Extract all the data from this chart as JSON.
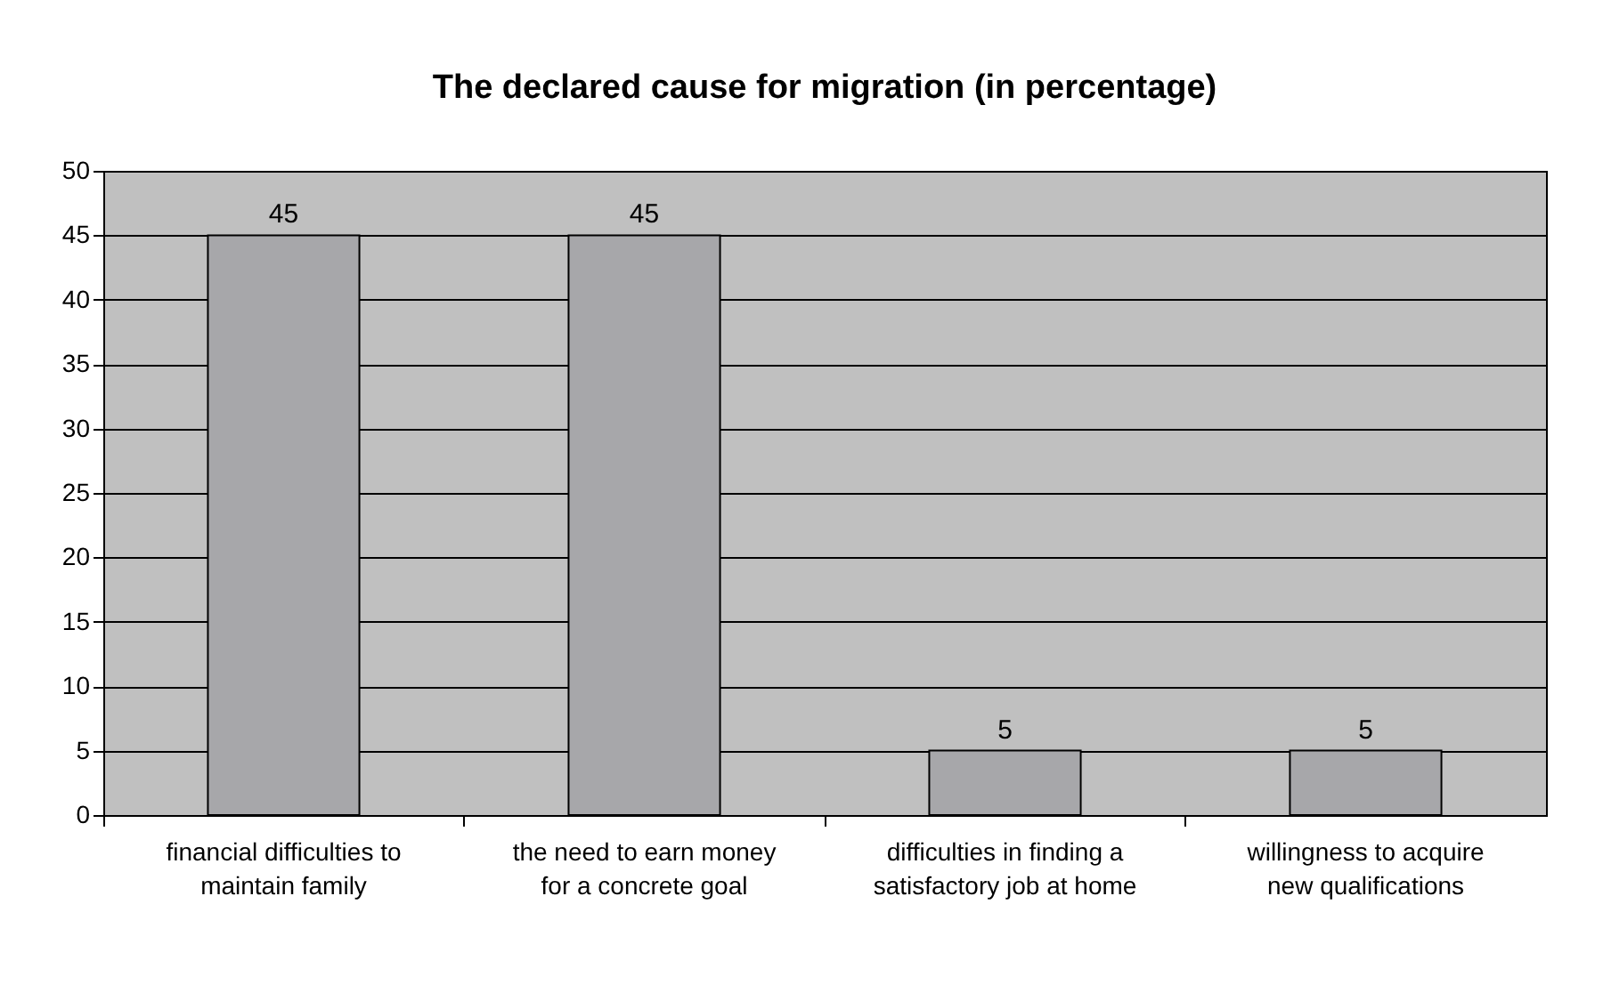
{
  "chart_data": {
    "type": "bar",
    "title": "The declared cause for migration (in percentage)",
    "categories": [
      "financial difficulties to maintain family",
      "the need to earn money for a concrete goal",
      "difficulties in finding a satisfactory job at home",
      "willingness to acquire new qualifications"
    ],
    "values": [
      45,
      45,
      5,
      5
    ],
    "color": "#a7a7aa",
    "ylim": [
      0,
      50
    ],
    "yticks": [
      0,
      5,
      10,
      15,
      20,
      25,
      30,
      35,
      40,
      45,
      50
    ],
    "grid": "y",
    "data_labels": true
  }
}
